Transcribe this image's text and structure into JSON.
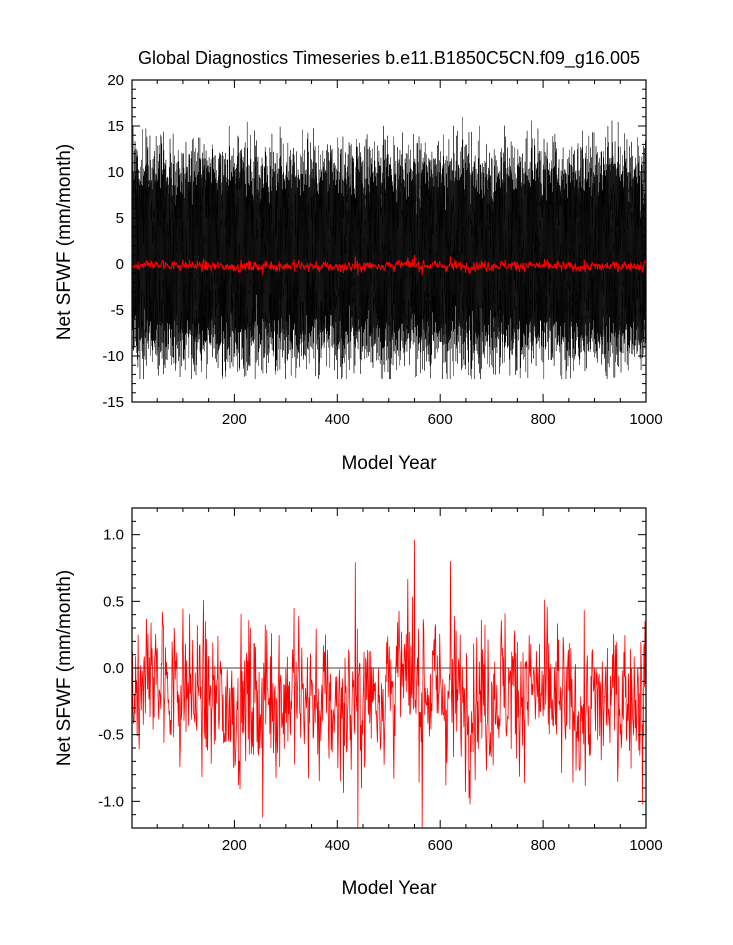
{
  "chart_data": [
    {
      "type": "line",
      "title": "Global Diagnostics Timeseries b.e11.B1850C5CN.f09_g16.005",
      "xlabel": "Model Year",
      "ylabel": "Net SFWF (mm/month)",
      "xlim": [
        1,
        1000
      ],
      "ylim": [
        -15,
        20
      ],
      "xticks": [
        200,
        400,
        600,
        800,
        1000
      ],
      "yticks": [
        -15,
        -10,
        -5,
        0,
        5,
        10,
        15,
        20
      ],
      "ytick_labels": [
        "-15",
        "-10",
        "-5",
        "0",
        "5",
        "10",
        "15",
        "20"
      ],
      "zero_line": true,
      "grid": false,
      "series": [
        {
          "resolution": "monthly",
          "color": "#000000",
          "approx_mean": 1.0,
          "approx_range": [
            -12.5,
            18.2
          ]
        },
        {
          "resolution": "annual",
          "color": "#ff0000",
          "approx_mean": -0.2,
          "approx_range": [
            -1.2,
            0.96
          ]
        }
      ]
    },
    {
      "type": "line",
      "title": "",
      "xlabel": "Model Year",
      "ylabel": "Net SFWF (mm/month)",
      "xlim": [
        1,
        1000
      ],
      "ylim": [
        -1.2,
        1.2
      ],
      "xticks": [
        200,
        400,
        600,
        800,
        1000
      ],
      "yticks": [
        -1.0,
        -0.5,
        0.0,
        0.5,
        1.0
      ],
      "ytick_labels": [
        "-1.0",
        "-0.5",
        "0.0",
        "0.5",
        "1.0"
      ],
      "zero_line": true,
      "grid": false,
      "series": [
        {
          "resolution": "annual",
          "color": "#ff0000",
          "approx_mean": -0.2,
          "approx_range": [
            -1.2,
            0.96
          ],
          "notable_points": [
            {
              "x": 255,
              "y": -1.12
            },
            {
              "x": 435,
              "y": 0.79
            },
            {
              "x": 440,
              "y": -1.2
            },
            {
              "x": 550,
              "y": 0.96
            },
            {
              "x": 565,
              "y": -1.2
            },
            {
              "x": 620,
              "y": 0.8
            },
            {
              "x": 993,
              "y": -1.02
            }
          ]
        }
      ]
    }
  ]
}
